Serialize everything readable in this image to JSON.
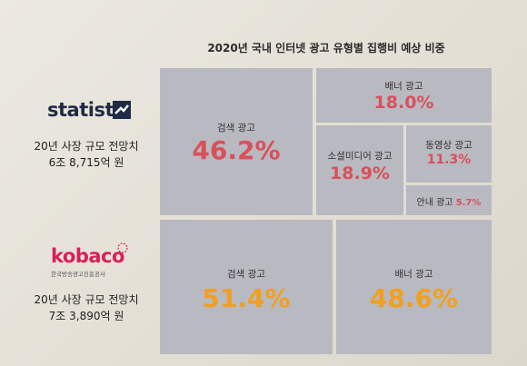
{
  "chart_data": {
    "type": "table",
    "title": "2020년 국내 인터넷 광고 유형별 집행비 예상 비중",
    "sources": [
      {
        "name": "statista",
        "forecast_label": "20년 사장 규모 전망치",
        "forecast_value": "6조 8,715억 원",
        "segments": [
          {
            "label": "검색 광고",
            "value": 46.2,
            "display": "46.2%"
          },
          {
            "label": "배너 광고",
            "value": 18.0,
            "display": "18.0%"
          },
          {
            "label": "소셜미디어 광고",
            "value": 18.9,
            "display": "18.9%"
          },
          {
            "label": "동영상 광고",
            "value": 11.3,
            "display": "11.3%"
          },
          {
            "label": "안내 광고",
            "value": 5.7,
            "display": "5.7%"
          }
        ]
      },
      {
        "name": "kobaco",
        "subtitle": "한국방송광고진흥공사",
        "forecast_label": "20년 사장 규모 전망치",
        "forecast_value": "7조 3,890억 원",
        "segments": [
          {
            "label": "검색 광고",
            "value": 51.4,
            "display": "51.4%"
          },
          {
            "label": "배너 광고",
            "value": 48.6,
            "display": "48.6%"
          }
        ]
      }
    ]
  },
  "colors": {
    "tile": "#b9b9c1",
    "statista_values": "#d9505a",
    "kobaco_values": "#f0a020",
    "statista_brand": "#1f2a44",
    "kobaco_brand": "#d8205a"
  },
  "icons": {
    "statista": "statista-logo-icon",
    "kobaco": "kobaco-logo-icon"
  }
}
